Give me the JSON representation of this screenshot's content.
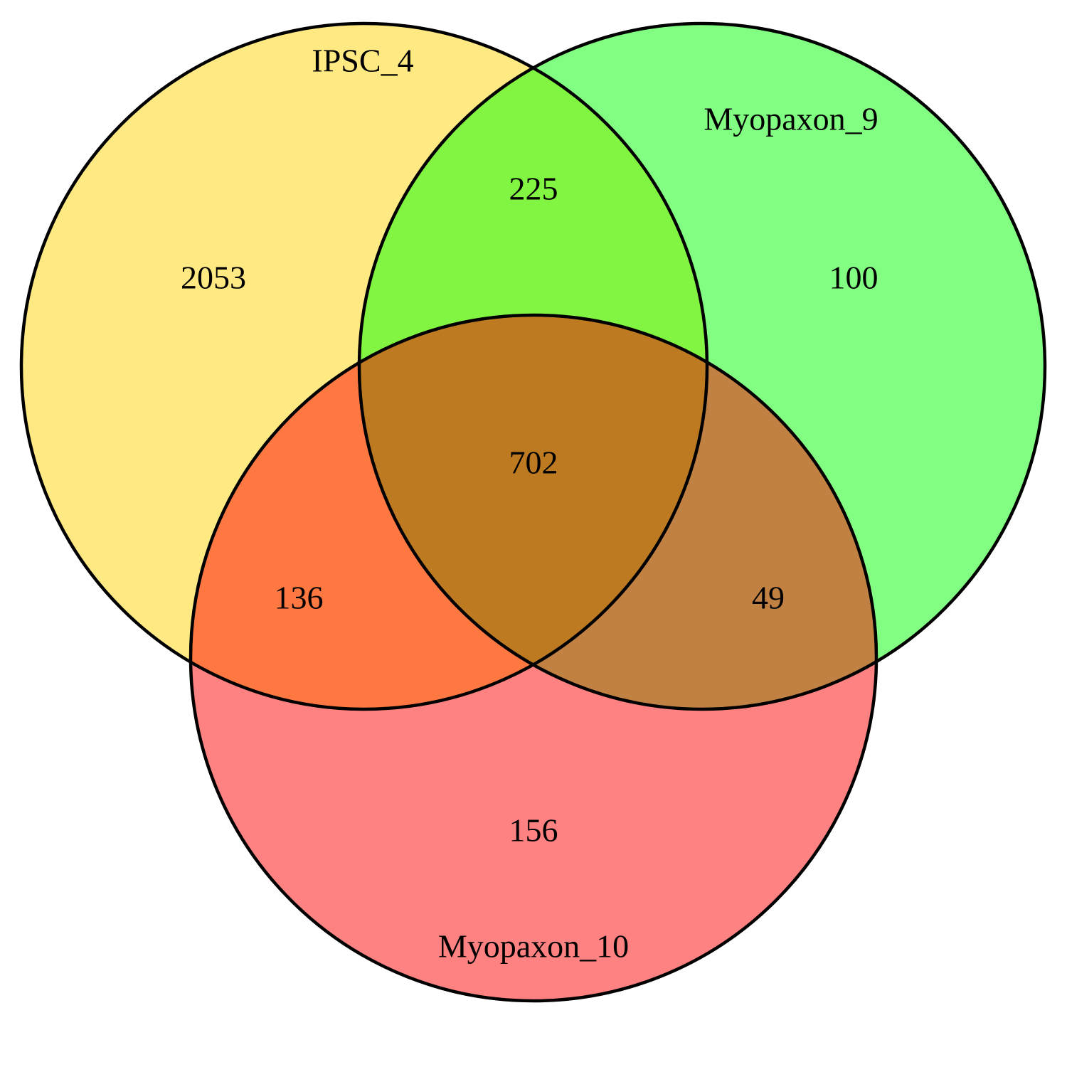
{
  "sets": [
    {
      "key": "ipsc",
      "label": "IPSC_4",
      "color": "#FFE982"
    },
    {
      "key": "myo9",
      "label": "Myopaxon_9",
      "color": "#82FF82"
    },
    {
      "key": "myo10",
      "label": "Myopaxon_10",
      "color": "#FF8282"
    }
  ],
  "region_colors": {
    "ipsc_myo9": "#82F542",
    "ipsc_myo10": "#FF7842",
    "myo9_myo10": "#C08142",
    "all_three": "#BD7A21"
  },
  "regions": {
    "ipsc_only": "2053",
    "myo9_only": "100",
    "myo10_only": "156",
    "ipsc_myo9": "225",
    "ipsc_myo10": "136",
    "myo9_myo10": "49",
    "all_three": "702"
  }
}
